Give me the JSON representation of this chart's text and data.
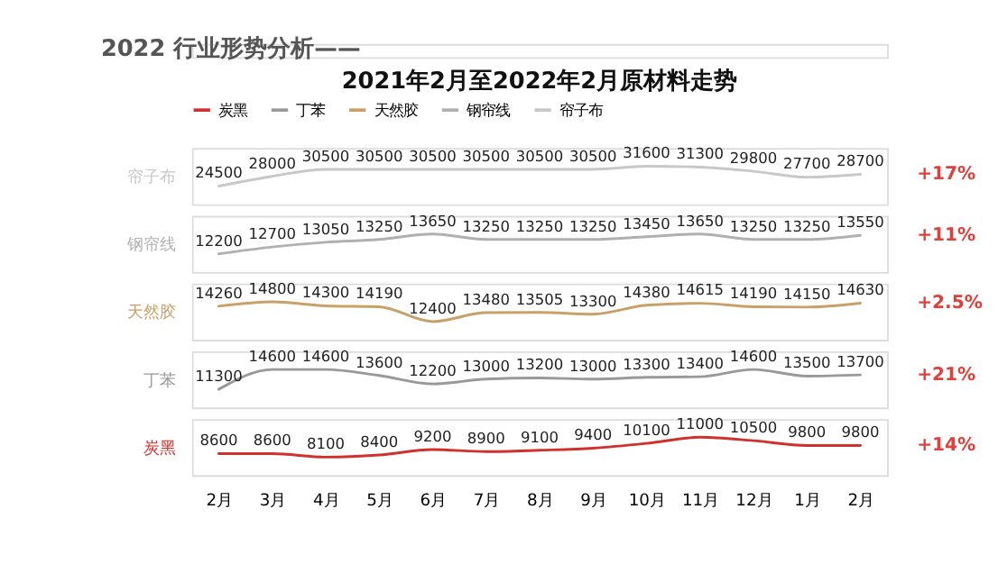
{
  "chart_data": [
    {
      "type": "line",
      "title": "2021年2月至2022年2月原材料走势",
      "legend": "top",
      "data_labels": true,
      "tick_labels": false,
      "annotations": [
        "2022 行业形势分析——",
        "+17%"
      ],
      "series": [
        {
          "name": "帘子布",
          "color": "#c8c8c8",
          "values": [
            24500,
            28000,
            30500,
            30500,
            30500,
            30500,
            30500,
            30500,
            31600,
            31300,
            29800,
            27700,
            28700
          ]
        }
      ]
    },
    {
      "type": "line",
      "data_labels": true,
      "tick_labels": false,
      "annotations": [
        "+11%"
      ],
      "series": [
        {
          "name": "钢帘线",
          "color": "#b0b0b0",
          "values": [
            12200,
            12700,
            13050,
            13250,
            13650,
            13250,
            13250,
            13250,
            13450,
            13650,
            13250,
            13250,
            13550
          ]
        }
      ]
    },
    {
      "type": "line",
      "data_labels": true,
      "tick_labels": false,
      "annotations": [
        "+2.5%"
      ],
      "series": [
        {
          "name": "天然胶",
          "color": "#c9a068",
          "values": [
            14260,
            14800,
            14300,
            14190,
            12400,
            13480,
            13505,
            13300,
            14380,
            14615,
            14190,
            14150,
            14630
          ]
        }
      ]
    },
    {
      "type": "line",
      "data_labels": true,
      "tick_labels": false,
      "annotations": [
        "+21%"
      ],
      "series": [
        {
          "name": "丁苯",
          "color": "#999999",
          "values": [
            11300,
            14600,
            14600,
            13600,
            12200,
            13000,
            13200,
            13000,
            13300,
            13400,
            14600,
            13500,
            13700
          ]
        }
      ]
    },
    {
      "type": "line",
      "data_labels": true,
      "tick_labels": "x",
      "annotations": [
        "+14%"
      ],
      "categories": [
        "2月",
        "3月",
        "4月",
        "5月",
        "6月",
        "7月",
        "8月",
        "9月",
        "10月",
        "11月",
        "12月",
        "1月",
        "2月"
      ],
      "series": [
        {
          "name": "炭黑",
          "color": "#d0312d",
          "values": [
            8600,
            8600,
            8100,
            8400,
            9200,
            8900,
            9100,
            9400,
            10100,
            11000,
            10500,
            9800,
            9800
          ]
        }
      ]
    }
  ]
}
